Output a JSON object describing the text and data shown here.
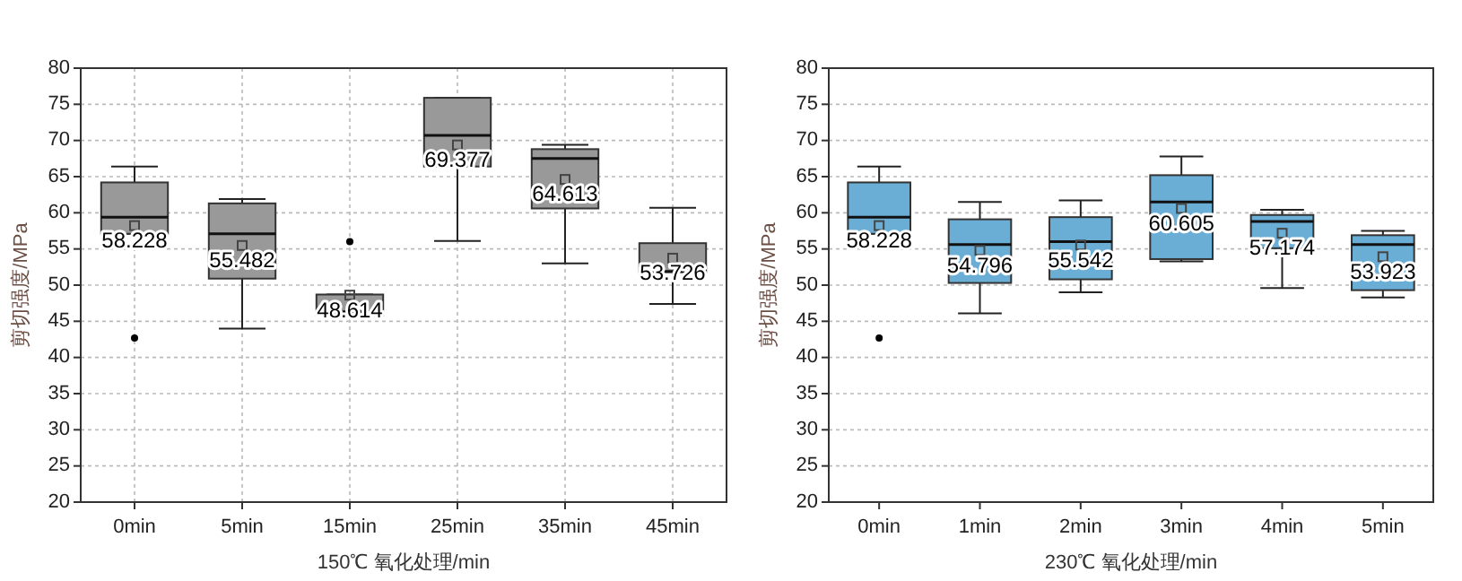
{
  "chart_data": [
    {
      "type": "box",
      "xlabel": "150℃ 氧化处理/min",
      "ylabel": "剪切强度/MPa",
      "categories": [
        "0min",
        "5min",
        "15min",
        "25min",
        "35min",
        "45min"
      ],
      "color": "#999999",
      "grid": true,
      "ylim": [
        20,
        80
      ],
      "yticks": [
        20,
        25,
        30,
        35,
        40,
        45,
        50,
        55,
        60,
        65,
        70,
        75,
        80
      ],
      "boxes": [
        {
          "low": 57.1,
          "q1": 57.1,
          "median": 59.4,
          "q3": 64.2,
          "high": 66.4,
          "mean": 58.228,
          "outliers": [
            42.7
          ]
        },
        {
          "low": 44.0,
          "q1": 50.9,
          "median": 57.1,
          "q3": 61.3,
          "high": 61.9,
          "mean": 55.482
        },
        {
          "low": 45.8,
          "q1": 45.8,
          "median": 46.3,
          "q3": 48.7,
          "high": 48.7,
          "mean": 48.614,
          "outliers": [
            56.0
          ]
        },
        {
          "low": 56.1,
          "q1": 66.4,
          "median": 70.7,
          "q3": 75.9,
          "high": 75.9,
          "mean": 69.377
        },
        {
          "low": 53.0,
          "q1": 60.6,
          "median": 67.5,
          "q3": 68.8,
          "high": 69.4,
          "mean": 64.613
        },
        {
          "low": 47.4,
          "q1": 51.8,
          "median": 51.9,
          "q3": 55.8,
          "high": 60.7,
          "mean": 53.726
        }
      ],
      "annotations": [
        "58.228",
        "55.482",
        "48.614",
        "69.377",
        "64.613",
        "53.726"
      ]
    },
    {
      "type": "box",
      "xlabel": "230℃ 氧化处理/min",
      "ylabel": "剪切强度/MPa",
      "categories": [
        "0min",
        "1min",
        "2min",
        "3min",
        "4min",
        "5min"
      ],
      "color": "#6aaed6",
      "grid": "y",
      "ylim": [
        20,
        80
      ],
      "yticks": [
        20,
        25,
        30,
        35,
        40,
        45,
        50,
        55,
        60,
        65,
        70,
        75,
        80
      ],
      "boxes": [
        {
          "low": 57.1,
          "q1": 57.1,
          "median": 59.4,
          "q3": 64.2,
          "high": 66.4,
          "mean": 58.228,
          "outliers": [
            42.7
          ]
        },
        {
          "low": 46.1,
          "q1": 50.3,
          "median": 55.6,
          "q3": 59.1,
          "high": 61.5,
          "mean": 54.796
        },
        {
          "low": 49.0,
          "q1": 50.8,
          "median": 56.0,
          "q3": 59.4,
          "high": 61.7,
          "mean": 55.542
        },
        {
          "low": 53.3,
          "q1": 53.6,
          "median": 61.5,
          "q3": 65.2,
          "high": 67.8,
          "mean": 60.605
        },
        {
          "low": 49.6,
          "q1": 55.1,
          "median": 58.8,
          "q3": 59.7,
          "high": 60.4,
          "mean": 57.174
        },
        {
          "low": 48.3,
          "q1": 49.3,
          "median": 55.6,
          "q3": 56.9,
          "high": 57.5,
          "mean": 53.923
        }
      ],
      "annotations": [
        "58.228",
        "54.796",
        "55.542",
        "60.605",
        "57.174",
        "53.923"
      ]
    }
  ]
}
